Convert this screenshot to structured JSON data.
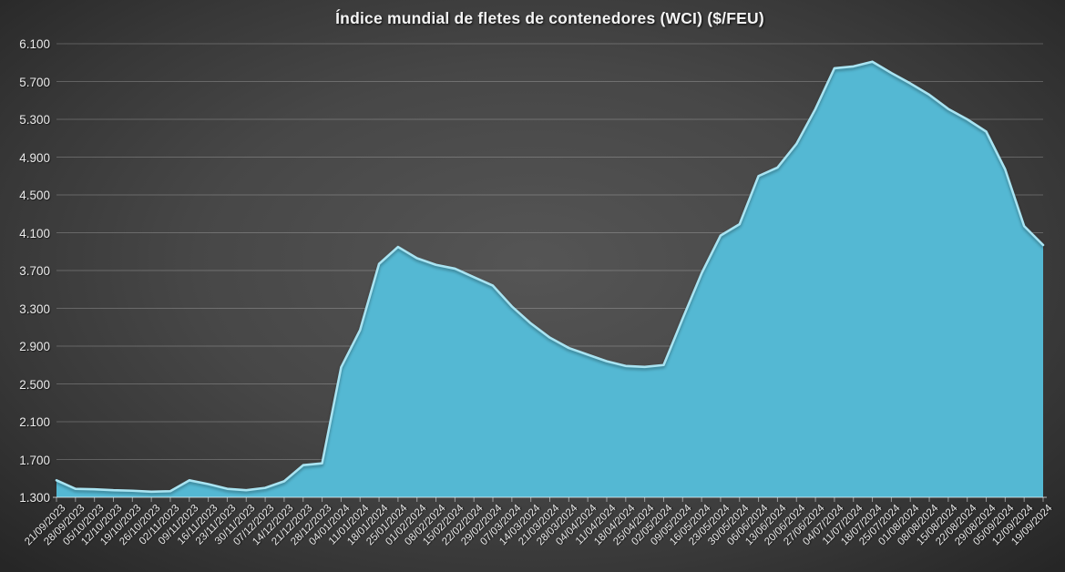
{
  "title": "Índice mundial de fletes de contenedores (WCI) ($/FEU)",
  "colors": {
    "area_fill": "#54b8d3",
    "area_edge_highlight": "#a9e4f2",
    "gridline": "rgba(255,255,255,0.22)",
    "axis_line": "rgba(255,255,255,0.55)",
    "tick_mark": "rgba(255,255,255,0.5)",
    "axis_text": "#ededed",
    "title_text": "#f4f4f4"
  },
  "chart_data": {
    "type": "area",
    "title": "Índice mundial de fletes de contenedores (WCI) ($/FEU)",
    "xlabel": "",
    "ylabel": "",
    "ylim": [
      1300,
      6100
    ],
    "ytick_step": 400,
    "ytick_values": [
      1300,
      1700,
      2100,
      2500,
      2900,
      3300,
      3700,
      4100,
      4500,
      4900,
      5300,
      5700,
      6100
    ],
    "ytick_labels": [
      "1.300",
      "1.700",
      "2.100",
      "2.500",
      "2.900",
      "3.300",
      "3.700",
      "4.100",
      "4.500",
      "4.900",
      "5.300",
      "5.700",
      "6.100"
    ],
    "grid": true,
    "legend": false,
    "x": [
      "21/09/2023",
      "28/09/2023",
      "05/10/2023",
      "12/10/2023",
      "19/10/2023",
      "26/10/2023",
      "02/11/2023",
      "09/11/2023",
      "16/11/2023",
      "23/11/2023",
      "30/11/2023",
      "07/12/2023",
      "14/12/2023",
      "21/12/2023",
      "28/12/2023",
      "04/01/2024",
      "11/01/2024",
      "18/01/2024",
      "25/01/2024",
      "01/02/2024",
      "08/02/2024",
      "15/02/2024",
      "22/02/2024",
      "29/02/2024",
      "07/03/2024",
      "14/03/2024",
      "21/03/2024",
      "28/03/2024",
      "04/04/2024",
      "11/04/2024",
      "18/04/2024",
      "25/04/2024",
      "02/05/2024",
      "09/05/2024",
      "16/05/2024",
      "23/05/2024",
      "30/05/2024",
      "06/06/2024",
      "13/06/2024",
      "20/06/2024",
      "27/06/2024",
      "04/07/2024",
      "11/07/2024",
      "18/07/2024",
      "25/07/2024",
      "01/08/2024",
      "08/08/2024",
      "15/08/2024",
      "22/08/2024",
      "29/08/2024",
      "05/09/2024",
      "12/09/2024",
      "19/09/2024"
    ],
    "values": [
      1480,
      1390,
      1385,
      1375,
      1370,
      1360,
      1365,
      1480,
      1440,
      1390,
      1375,
      1400,
      1470,
      1640,
      1660,
      2675,
      3070,
      3770,
      3950,
      3830,
      3760,
      3720,
      3630,
      3540,
      3320,
      3140,
      2990,
      2880,
      2810,
      2740,
      2690,
      2680,
      2700,
      3190,
      3670,
      4070,
      4190,
      4700,
      4790,
      5040,
      5410,
      5840,
      5860,
      5910,
      5790,
      5680,
      5560,
      5410,
      5300,
      5170,
      4770,
      4170,
      3970
    ]
  }
}
